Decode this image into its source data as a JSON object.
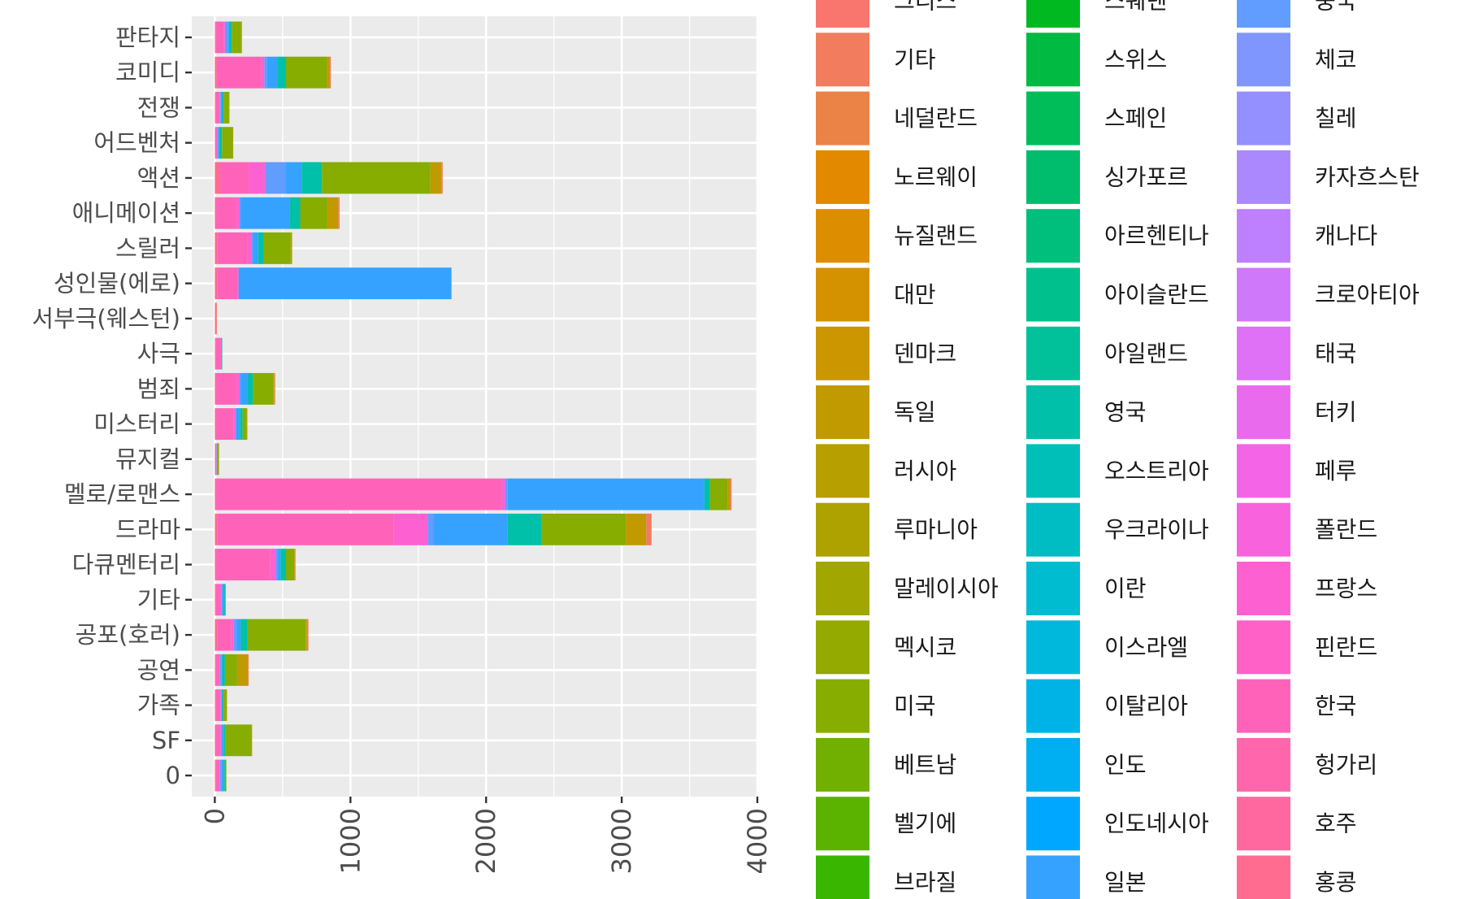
{
  "chart_data": {
    "type": "bar",
    "orientation": "horizontal",
    "stacked": true,
    "categories": [
      "0",
      "SF",
      "가족",
      "공연",
      "공포(호러)",
      "기타",
      "다큐멘터리",
      "드라마",
      "멜로/로맨스",
      "뮤지컬",
      "미스터리",
      "범죄",
      "사극",
      "서부극(웨스턴)",
      "성인물(에로)",
      "스릴러",
      "애니메이션",
      "액션",
      "어드벤처",
      "전쟁",
      "코미디",
      "판타지"
    ],
    "x_ticks": [
      "0",
      "1000",
      "2000",
      "3000",
      "4000"
    ],
    "xlim": [
      -170,
      4000
    ],
    "grid": true,
    "legend_position": "right",
    "legend": [
      {
        "name": "그리스",
        "color": "#F8766D"
      },
      {
        "name": "기타",
        "color": "#F17D5E"
      },
      {
        "name": "네덜란드",
        "color": "#EA8345"
      },
      {
        "name": "노르웨이",
        "color": "#E38900"
      },
      {
        "name": "뉴질랜드",
        "color": "#DC8E00"
      },
      {
        "name": "대만",
        "color": "#D49200"
      },
      {
        "name": "덴마크",
        "color": "#CB9600"
      },
      {
        "name": "독일",
        "color": "#C19A00"
      },
      {
        "name": "러시아",
        "color": "#B79F00"
      },
      {
        "name": "루마니아",
        "color": "#ADA200"
      },
      {
        "name": "말레이시아",
        "color": "#A1A600"
      },
      {
        "name": "멕시코",
        "color": "#94AA00"
      },
      {
        "name": "미국",
        "color": "#86AD00"
      },
      {
        "name": "베트남",
        "color": "#72B000"
      },
      {
        "name": "벨기에",
        "color": "#5BB300"
      },
      {
        "name": "브라질",
        "color": "#39B600"
      },
      {
        "name": "스웨덴",
        "color": "#00B81F"
      },
      {
        "name": "스위스",
        "color": "#00BA42"
      },
      {
        "name": "스페인",
        "color": "#00BC59"
      },
      {
        "name": "싱가포르",
        "color": "#00BD6D"
      },
      {
        "name": "아르헨티나",
        "color": "#00BF7D"
      },
      {
        "name": "아이슬란드",
        "color": "#00C08D"
      },
      {
        "name": "아일랜드",
        "color": "#00C19A"
      },
      {
        "name": "영국",
        "color": "#00C0AA"
      },
      {
        "name": "오스트리아",
        "color": "#00BFB8"
      },
      {
        "name": "우크라이나",
        "color": "#00BDC4"
      },
      {
        "name": "이란",
        "color": "#00BCD1"
      },
      {
        "name": "이스라엘",
        "color": "#00B8DC"
      },
      {
        "name": "이탈리아",
        "color": "#00B3E7"
      },
      {
        "name": "인도",
        "color": "#00AEF2"
      },
      {
        "name": "인도네시아",
        "color": "#00A7FF"
      },
      {
        "name": "일본",
        "color": "#35A2FF"
      },
      {
        "name": "중국",
        "color": "#619CFF"
      },
      {
        "name": "체코",
        "color": "#7F96FF"
      },
      {
        "name": "칠레",
        "color": "#9590FF"
      },
      {
        "name": "카자흐스탄",
        "color": "#AC88FF"
      },
      {
        "name": "캐나다",
        "color": "#BF80FF"
      },
      {
        "name": "크로아티아",
        "color": "#D078FA"
      },
      {
        "name": "태국",
        "color": "#DE71F5"
      },
      {
        "name": "터키",
        "color": "#EA6AEE"
      },
      {
        "name": "페루",
        "color": "#F365E6"
      },
      {
        "name": "폴란드",
        "color": "#F962DD"
      },
      {
        "name": "프랑스",
        "color": "#FD61D1"
      },
      {
        "name": "핀란드",
        "color": "#FF61C6"
      },
      {
        "name": "한국",
        "color": "#FF63B9"
      },
      {
        "name": "헝가리",
        "color": "#FF66AB"
      },
      {
        "name": "호주",
        "color": "#FF689E"
      },
      {
        "name": "홍콩",
        "color": "#FF6C90"
      }
    ],
    "series": [
      {
        "name": "홍콩",
        "values": [
          5,
          10,
          5,
          5,
          20,
          5,
          10,
          20,
          10,
          3,
          10,
          10,
          5,
          2,
          20,
          20,
          10,
          40,
          3,
          5,
          15,
          5
        ]
      },
      {
        "name": "한국",
        "values": [
          30,
          30,
          35,
          30,
          100,
          35,
          400,
          1300,
          2100,
          8,
          130,
          150,
          40,
          8,
          150,
          220,
          150,
          210,
          10,
          30,
          330,
          60
        ]
      },
      {
        "name": "프랑스",
        "values": [
          5,
          5,
          5,
          5,
          20,
          10,
          40,
          250,
          30,
          3,
          10,
          20,
          2,
          0,
          5,
          30,
          20,
          120,
          5,
          5,
          20,
          10
        ]
      },
      {
        "name": "중국",
        "values": [
          10,
          10,
          5,
          10,
          20,
          5,
          10,
          40,
          20,
          0,
          5,
          10,
          2,
          0,
          0,
          10,
          10,
          150,
          5,
          5,
          20,
          20
        ]
      },
      {
        "name": "일본",
        "values": [
          15,
          10,
          5,
          5,
          30,
          15,
          25,
          550,
          1450,
          2,
          30,
          50,
          3,
          0,
          1570,
          40,
          360,
          120,
          10,
          10,
          80,
          10
        ]
      },
      {
        "name": "영국",
        "values": [
          10,
          15,
          10,
          20,
          50,
          10,
          40,
          250,
          40,
          5,
          20,
          40,
          2,
          0,
          0,
          40,
          80,
          150,
          20,
          10,
          60,
          20
        ]
      },
      {
        "name": "미국",
        "values": [
          10,
          190,
          20,
          90,
          430,
          0,
          60,
          620,
          130,
          10,
          30,
          150,
          0,
          0,
          0,
          200,
          200,
          800,
          80,
          40,
          300,
          70
        ]
      },
      {
        "name": "독일",
        "values": [
          0,
          5,
          5,
          80,
          10,
          0,
          5,
          150,
          20,
          0,
          5,
          10,
          0,
          0,
          0,
          10,
          80,
          80,
          2,
          3,
          20,
          5
        ]
      },
      {
        "name": "기타",
        "values": [
          0,
          0,
          0,
          5,
          10,
          0,
          5,
          40,
          10,
          0,
          0,
          5,
          0,
          5,
          0,
          0,
          10,
          10,
          0,
          0,
          10,
          0
        ]
      }
    ]
  }
}
